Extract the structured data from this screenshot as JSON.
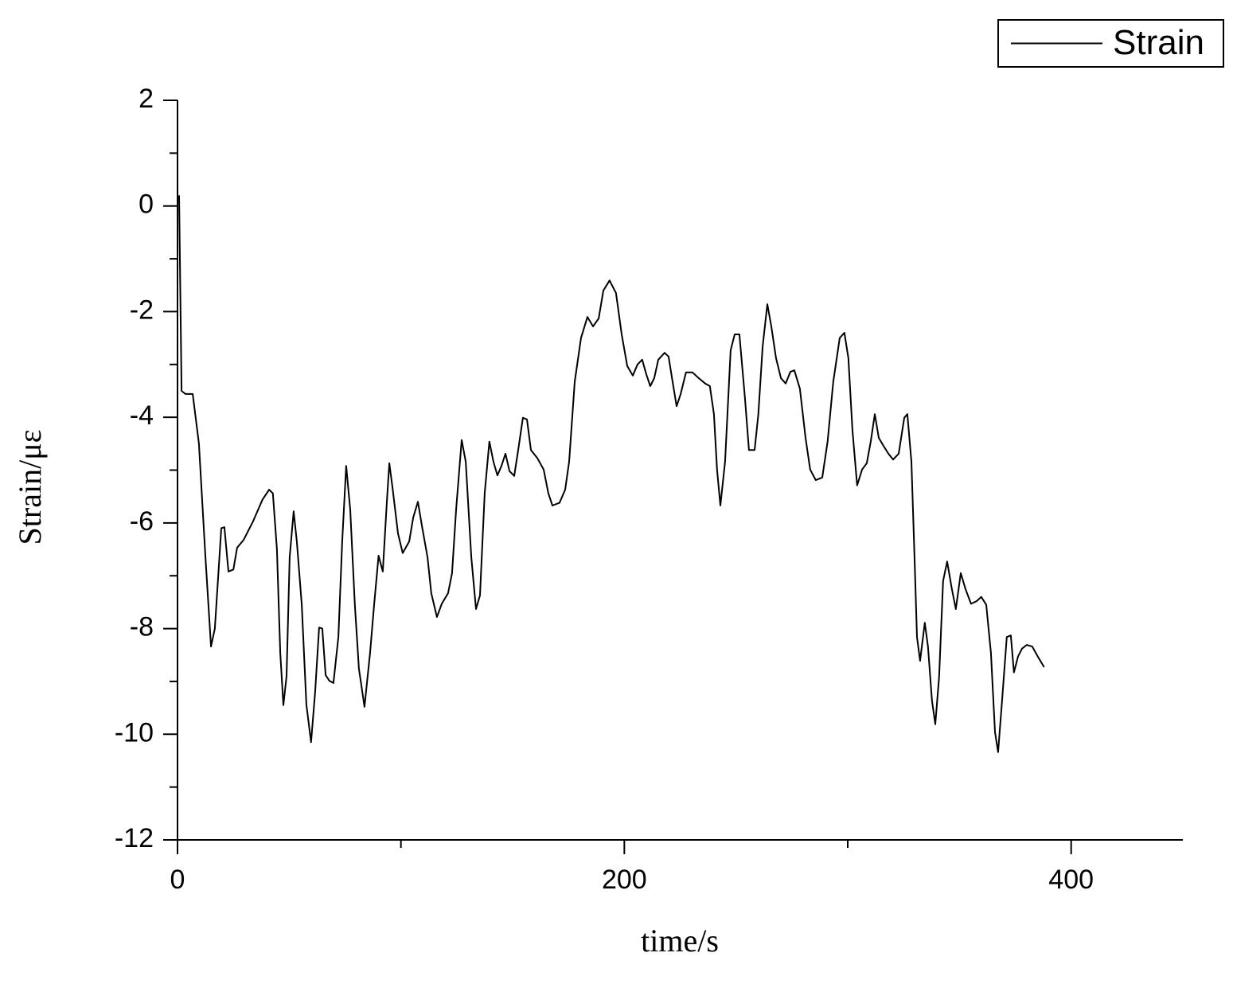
{
  "chart_data": {
    "type": "line",
    "x_label": "time/s",
    "y_label": "Strain/με",
    "xlim": [
      0,
      450
    ],
    "xticks": [
      0,
      200,
      400
    ],
    "xminorticks": [
      100,
      300
    ],
    "ylim": [
      -12,
      2
    ],
    "yticks": [
      -12,
      -10,
      -8,
      -6,
      -4,
      -2,
      0,
      2
    ],
    "yminorticks": [
      -11,
      -9,
      -7,
      -5,
      -3,
      -1,
      1
    ],
    "legend": "upper right",
    "grid": false,
    "x": [
      0.7,
      1.8,
      3.6,
      6.8,
      9.6,
      12.5,
      15,
      16.7,
      19.6,
      21,
      22.8,
      25,
      26.7,
      29.6,
      33.8,
      38,
      41,
      42.7,
      44.5,
      46,
      47.4,
      48.8,
      50.2,
      52,
      53.4,
      55.6,
      57.7,
      59.8,
      61.6,
      63.4,
      64.8,
      66.3,
      68,
      69.8,
      72,
      73.7,
      75.5,
      77.3,
      79.4,
      81.2,
      83.7,
      86.2,
      88,
      90,
      91.9,
      93.7,
      94.8,
      96.2,
      98.7,
      100.8,
      103.7,
      105.5,
      107.6,
      109.4,
      111.9,
      113.6,
      116.1,
      118.3,
      121.1,
      122.9,
      124.7,
      127.2,
      129,
      131.5,
      133.6,
      135.4,
      137.5,
      139.6,
      141.4,
      143.2,
      145,
      146.8,
      148.6,
      150.7,
      152.5,
      154.6,
      156.4,
      158.2,
      161,
      163.9,
      166,
      167.8,
      171,
      173.5,
      175.3,
      177.8,
      180.6,
      183.5,
      186,
      188.5,
      190.6,
      193.4,
      196.3,
      198.8,
      201.3,
      203.8,
      205.9,
      208,
      209.8,
      211.6,
      213.4,
      215.2,
      218,
      219.8,
      221.6,
      223.4,
      225.2,
      227.6,
      230.5,
      233.3,
      236.2,
      238.3,
      240.1,
      241.5,
      243,
      245.1,
      247.6,
      249.4,
      251.5,
      254,
      255.8,
      258.3,
      260,
      261.9,
      264,
      265.8,
      267.9,
      270.1,
      272.2,
      274.3,
      276.1,
      278.6,
      281.1,
      283.2,
      285.7,
      288.6,
      291,
      293.5,
      296.4,
      298.5,
      300.3,
      302.1,
      304.2,
      306.4,
      308.5,
      310.3,
      312.1,
      313.9,
      316,
      318.2,
      320.3,
      322.8,
      325.3,
      326.7,
      328.5,
      329.9,
      331,
      332.4,
      334.5,
      335.9,
      337.7,
      339.2,
      340.9,
      342.7,
      344.5,
      346.6,
      348.4,
      350.6,
      352.7,
      355.2,
      357.7,
      359.8,
      362,
      364.1,
      365.9,
      367.3,
      369.1,
      371.2,
      373,
      374.4,
      376.2,
      378,
      380.1,
      382.6,
      385.1,
      387.9
    ],
    "series": [
      {
        "name": "Strain",
        "color": "#000000",
        "values": [
          0.2,
          -3.5,
          -3.56,
          -3.56,
          -4.5,
          -6.65,
          -8.34,
          -8.0,
          -6.1,
          -6.08,
          -6.92,
          -6.88,
          -6.47,
          -6.32,
          -5.97,
          -5.56,
          -5.37,
          -5.44,
          -6.5,
          -8.46,
          -9.45,
          -8.9,
          -6.65,
          -5.78,
          -6.35,
          -7.55,
          -9.44,
          -10.15,
          -9.2,
          -7.98,
          -8.0,
          -8.88,
          -8.99,
          -9.03,
          -8.16,
          -6.35,
          -4.92,
          -5.75,
          -7.55,
          -8.76,
          -9.48,
          -8.46,
          -7.55,
          -6.62,
          -6.92,
          -5.6,
          -4.87,
          -5.32,
          -6.2,
          -6.57,
          -6.35,
          -5.9,
          -5.6,
          -6.05,
          -6.65,
          -7.33,
          -7.78,
          -7.53,
          -7.33,
          -6.95,
          -5.75,
          -4.43,
          -4.84,
          -6.65,
          -7.63,
          -7.37,
          -5.44,
          -4.46,
          -4.84,
          -5.1,
          -4.92,
          -4.69,
          -5.02,
          -5.11,
          -4.62,
          -4.01,
          -4.04,
          -4.62,
          -4.77,
          -4.99,
          -5.44,
          -5.67,
          -5.62,
          -5.37,
          -4.84,
          -3.33,
          -2.5,
          -2.1,
          -2.28,
          -2.13,
          -1.6,
          -1.41,
          -1.65,
          -2.43,
          -3.03,
          -3.21,
          -3.0,
          -2.91,
          -3.18,
          -3.41,
          -3.26,
          -2.91,
          -2.78,
          -2.85,
          -3.33,
          -3.79,
          -3.56,
          -3.15,
          -3.15,
          -3.26,
          -3.36,
          -3.41,
          -3.94,
          -4.99,
          -5.67,
          -4.84,
          -2.73,
          -2.43,
          -2.43,
          -3.64,
          -4.62,
          -4.62,
          -3.94,
          -2.66,
          -1.86,
          -2.28,
          -2.88,
          -3.26,
          -3.36,
          -3.14,
          -3.11,
          -3.46,
          -4.39,
          -4.99,
          -5.19,
          -5.14,
          -4.46,
          -3.33,
          -2.5,
          -2.4,
          -2.88,
          -4.24,
          -5.29,
          -4.99,
          -4.87,
          -4.46,
          -3.94,
          -4.39,
          -4.54,
          -4.69,
          -4.8,
          -4.69,
          -4.01,
          -3.94,
          -4.84,
          -6.65,
          -8.16,
          -8.61,
          -7.89,
          -8.34,
          -9.36,
          -9.81,
          -8.91,
          -7.1,
          -6.73,
          -7.25,
          -7.63,
          -6.95,
          -7.25,
          -7.53,
          -7.48,
          -7.4,
          -7.55,
          -8.46,
          -9.96,
          -10.34,
          -9.36,
          -8.16,
          -8.13,
          -8.83,
          -8.53,
          -8.38,
          -8.31,
          -8.34,
          -8.53,
          -8.73
        ]
      }
    ]
  }
}
